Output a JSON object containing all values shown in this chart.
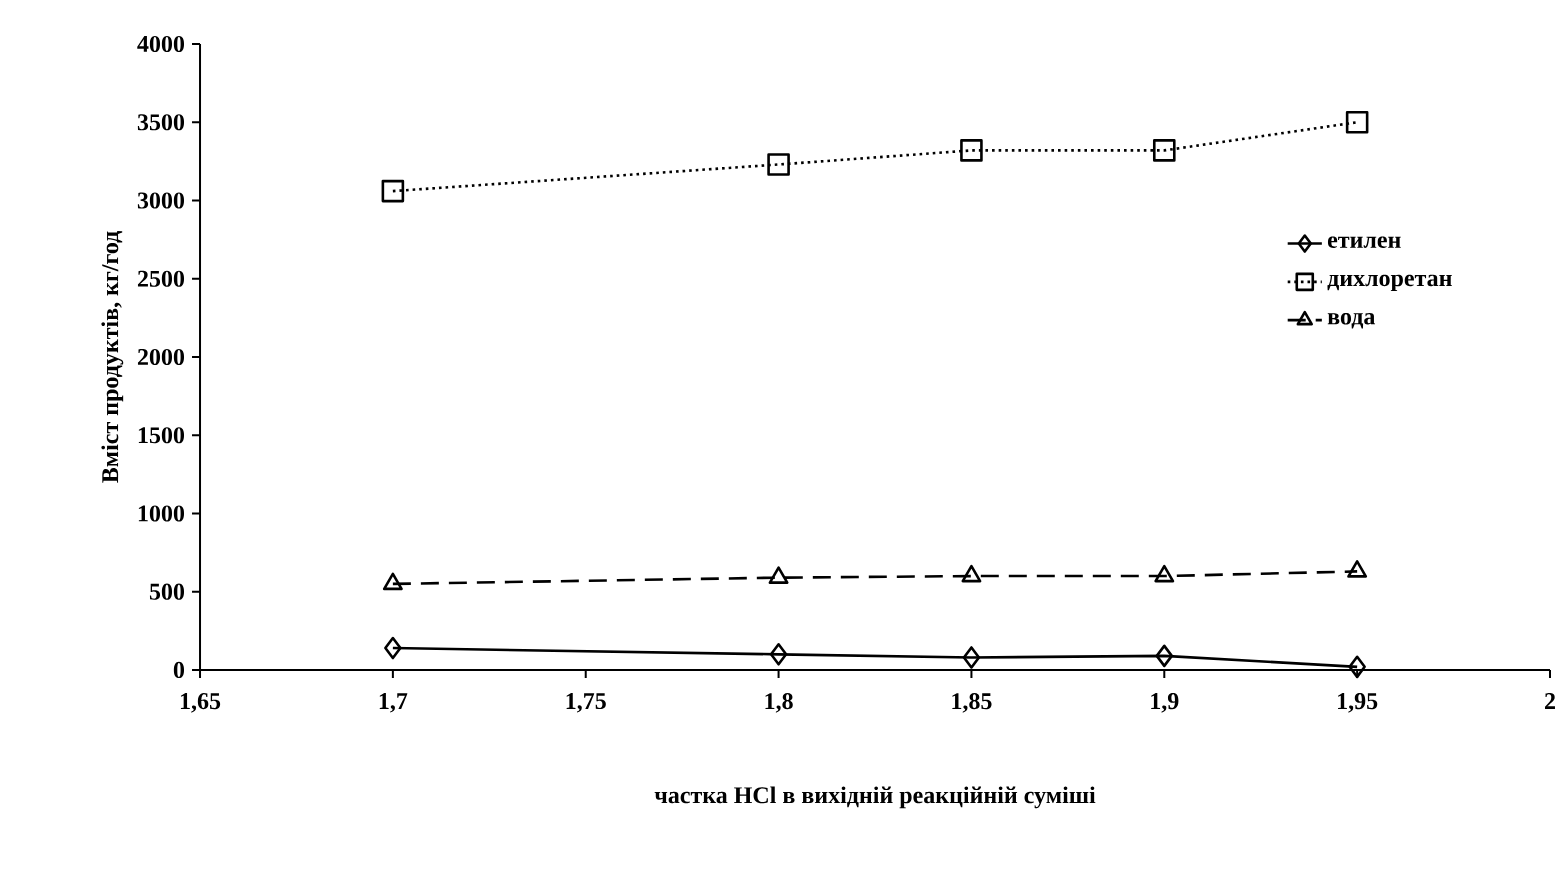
{
  "chart_data": {
    "type": "line",
    "xlabel": "частка HCl в вихідній реакційній суміші",
    "ylabel": "Вміст продуктів, кг/год",
    "x": [
      1.7,
      1.8,
      1.85,
      1.9,
      1.95
    ],
    "series": [
      {
        "name": "етилен",
        "color": "#000000",
        "marker": "diamond",
        "line_style": "solid",
        "values": [
          140,
          100,
          80,
          90,
          20
        ]
      },
      {
        "name": "дихлоретан",
        "color": "#000000",
        "marker": "square",
        "line_style": "dotted",
        "values": [
          3060,
          3230,
          3320,
          3320,
          3500
        ]
      },
      {
        "name": "вода",
        "color": "#000000",
        "marker": "triangle",
        "line_style": "dashed",
        "values": [
          550,
          590,
          600,
          600,
          630
        ]
      }
    ],
    "xlim": [
      1.65,
      2
    ],
    "ylim": [
      0,
      4000
    ],
    "xticks": [
      {
        "value": 1.65,
        "label": "1,65"
      },
      {
        "value": 1.7,
        "label": "1,7"
      },
      {
        "value": 1.75,
        "label": "1,75"
      },
      {
        "value": 1.8,
        "label": "1,8"
      },
      {
        "value": 1.85,
        "label": "1,85"
      },
      {
        "value": 1.9,
        "label": "1,9"
      },
      {
        "value": 1.95,
        "label": "1,95"
      },
      2
    ],
    "yticks": [
      0,
      500,
      1000,
      1500,
      2000,
      2500,
      3000,
      3500,
      4000
    ],
    "grid": false,
    "legend": "right"
  }
}
